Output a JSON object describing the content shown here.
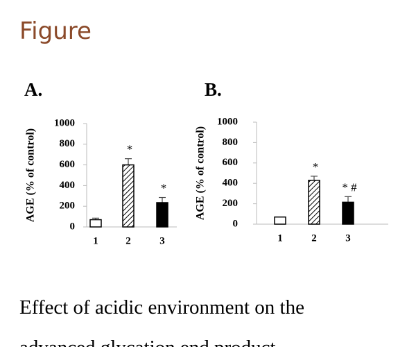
{
  "header": {
    "title": "Figure"
  },
  "chart_data": [
    {
      "type": "bar",
      "panel": "A.",
      "ylabel": "AGE (% of control)",
      "categories": [
        "1",
        "2",
        "3"
      ],
      "values": [
        70,
        600,
        235
      ],
      "errors": [
        15,
        60,
        50
      ],
      "annotations": [
        null,
        "*",
        "*"
      ],
      "bar_styles": [
        "open",
        "hatched",
        "solid"
      ],
      "ylim": [
        0,
        1000
      ],
      "yticks": [
        0,
        200,
        400,
        600,
        800,
        1000
      ]
    },
    {
      "type": "bar",
      "panel": "B.",
      "ylabel": "AGE (% of control)",
      "categories": [
        "1",
        "2",
        "3"
      ],
      "values": [
        70,
        430,
        215
      ],
      "errors": [
        0,
        40,
        55
      ],
      "annotations": [
        null,
        "*",
        "* #"
      ],
      "bar_styles": [
        "open",
        "hatched",
        "solid"
      ],
      "ylim": [
        0,
        1000
      ],
      "yticks": [
        0,
        200,
        400,
        600,
        800,
        1000
      ]
    }
  ],
  "caption": [
    "Effect of acidic environment on the",
    "advanced glycation end product"
  ]
}
